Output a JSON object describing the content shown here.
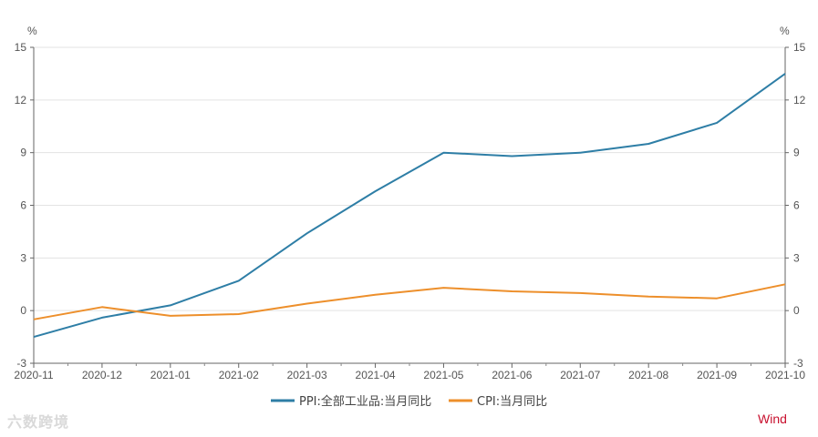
{
  "chart_data": {
    "type": "line",
    "x": [
      "2020-11",
      "2020-12",
      "2021-01",
      "2021-02",
      "2021-03",
      "2021-04",
      "2021-05",
      "2021-06",
      "2021-07",
      "2021-08",
      "2021-09",
      "2021-10"
    ],
    "series": [
      {
        "name": "PPI:全部工业品:当月同比",
        "color": "#2e7ea6",
        "values": [
          -1.5,
          -0.4,
          0.3,
          1.7,
          4.4,
          6.8,
          9.0,
          8.8,
          9.0,
          9.5,
          10.7,
          13.5
        ]
      },
      {
        "name": "CPI:当月同比",
        "color": "#ed8f2b",
        "values": [
          -0.5,
          0.2,
          -0.3,
          -0.2,
          0.4,
          0.9,
          1.3,
          1.1,
          1.0,
          0.8,
          0.7,
          1.5
        ]
      }
    ],
    "ylim": [
      -3,
      15
    ],
    "yticks": [
      "-3",
      "0",
      "3",
      "6",
      "9",
      "12",
      "15"
    ],
    "y_unit_left": "%",
    "y_unit_right": "%",
    "grid": true,
    "legend": "bottom-center"
  },
  "watermark": "六数跨境",
  "brand": "Wind"
}
